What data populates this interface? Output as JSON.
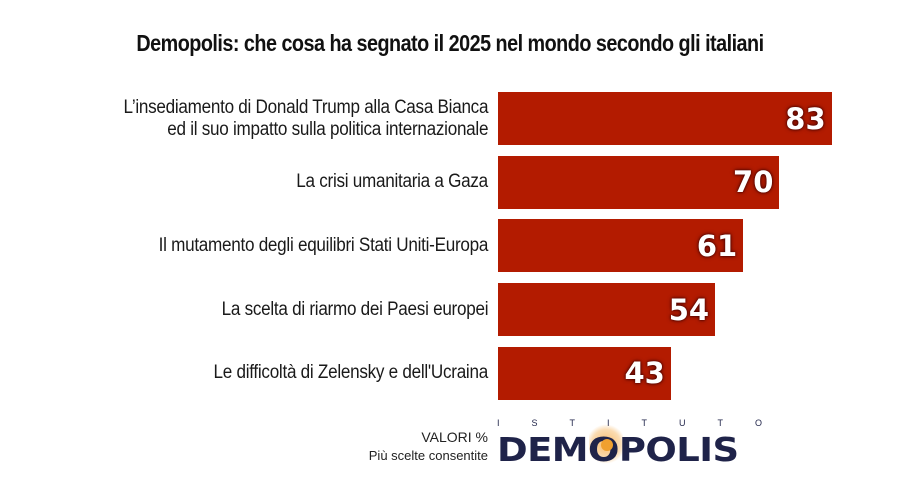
{
  "chart_data": {
    "type": "bar",
    "orientation": "horizontal",
    "title": "Demopolis: che cosa ha segnato il 2025 nel mondo secondo gli italiani",
    "categories": [
      [
        "L’insediamento di Donald Trump alla Casa Bianca",
        "ed il suo impatto sulla politica internazionale"
      ],
      [
        "La crisi umanitaria a Gaza"
      ],
      [
        "Il mutamento degli equilibri Stati Uniti-Europa"
      ],
      [
        "La scelta di riarmo dei Paesi europei"
      ],
      [
        "Le difficoltà di Zelensky e dell'Ucraina"
      ]
    ],
    "values": [
      83,
      70,
      61,
      54,
      43
    ],
    "xlabel": "",
    "ylabel": "",
    "unit": "%",
    "grid": false,
    "legend": "none",
    "bar_color": "#b31b00"
  },
  "notes": {
    "values_label": "VALORI %",
    "multiple_choice": "Più scelte consentite"
  },
  "logo": {
    "top_letters": [
      "I",
      "S",
      "T",
      "I",
      "T",
      "U",
      "T",
      "O"
    ],
    "name": "DEMOPOLIS",
    "brand_color": "#1f2349",
    "accent_color": "#f0a030"
  }
}
